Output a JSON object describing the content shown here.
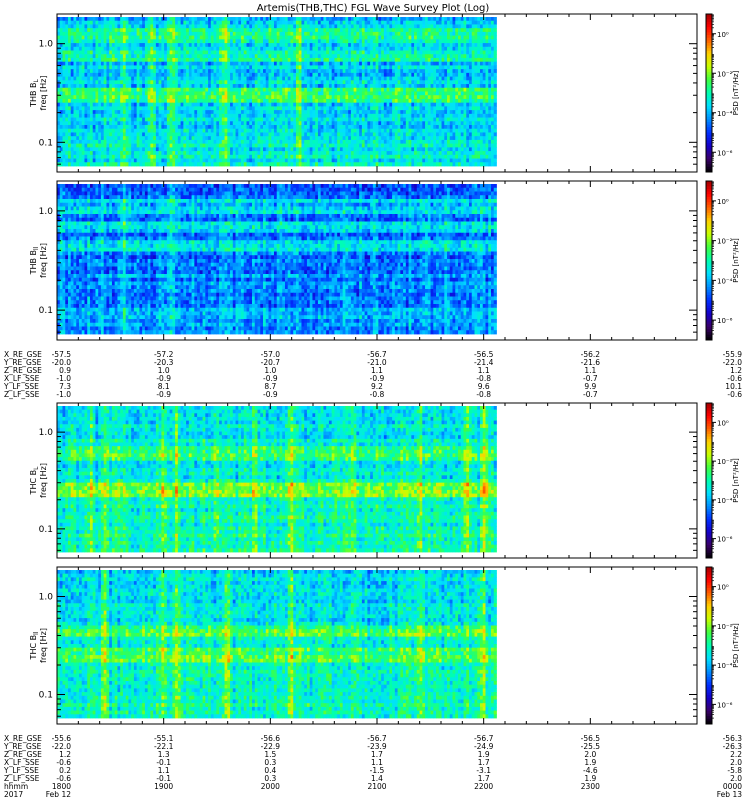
{
  "title": "Artemis(THB,THC) FGL Wave Survey Plot (Log)",
  "colors": {
    "colormap": [
      "#000000",
      "#3a006a",
      "#1400c8",
      "#0030ff",
      "#0090ff",
      "#00e0ff",
      "#00ffb0",
      "#40ff40",
      "#c8ff00",
      "#ffd000",
      "#ff6000",
      "#ff0000",
      "#a00000"
    ]
  },
  "chart_data": [
    {
      "type": "heatmap",
      "panel": "THB B_L",
      "ylabel_parts": [
        "THB B",
        "L"
      ],
      "yunit": "freq [Hz]",
      "yscale": "log",
      "ylim": [
        0.05,
        2.0
      ],
      "yticks": [
        {
          "v": 1.0,
          "label": "1.0"
        },
        {
          "v": 0.1,
          "label": "0.1"
        }
      ],
      "xlim": [
        1800,
        2400
      ],
      "data_extent_x": [
        1800,
        2212
      ],
      "colorbar_label": "PSD [nT²/Hz]",
      "colorbar_range_log": [
        -7,
        1
      ],
      "colorbar_ticks": [
        {
          "exp": 0,
          "label": "10⁰"
        },
        {
          "exp": -2,
          "label": "10⁻²"
        },
        {
          "exp": -4,
          "label": "10⁻⁴"
        },
        {
          "exp": -6,
          "label": "10⁻⁶"
        }
      ],
      "base_level": -3.7,
      "hot_freqs": [
        0.3,
        0.75,
        1.2
      ],
      "hot_times": [
        1863,
        1888,
        1908,
        1957,
        2027
      ]
    },
    {
      "type": "heatmap",
      "panel": "THB B_ll",
      "ylabel_parts": [
        "THB B",
        "ll"
      ],
      "yunit": "freq [Hz]",
      "yscale": "log",
      "ylim": [
        0.05,
        2.0
      ],
      "yticks": [
        {
          "v": 1.0,
          "label": "1.0"
        },
        {
          "v": 0.1,
          "label": "0.1"
        }
      ],
      "xlim": [
        1800,
        2400
      ],
      "data_extent_x": [
        1800,
        2212
      ],
      "colorbar_label": "PSD [nT²/Hz]",
      "colorbar_range_log": [
        -7,
        1
      ],
      "colorbar_ticks": [
        {
          "exp": 0,
          "label": "10⁰"
        },
        {
          "exp": -2,
          "label": "10⁻²"
        },
        {
          "exp": -4,
          "label": "10⁻⁴"
        },
        {
          "exp": -6,
          "label": "10⁻⁶"
        }
      ],
      "base_level": -4.4,
      "hot_freqs": [
        0.45,
        0.7,
        1.1
      ],
      "hot_times": [
        1863,
        1908
      ]
    },
    {
      "type": "heatmap",
      "panel": "THC B_L",
      "ylabel_parts": [
        "THC B",
        "L"
      ],
      "yunit": "freq [Hz]",
      "yscale": "log",
      "ylim": [
        0.05,
        2.0
      ],
      "yticks": [
        {
          "v": 1.0,
          "label": "1.0"
        },
        {
          "v": 0.1,
          "label": "0.1"
        }
      ],
      "xlim": [
        1800,
        2400
      ],
      "data_extent_x": [
        1800,
        2212
      ],
      "colorbar_label": "PSD [nT²/Hz]",
      "colorbar_range_log": [
        -7,
        1
      ],
      "colorbar_ticks": [
        {
          "exp": 0,
          "label": "10⁰"
        },
        {
          "exp": -2,
          "label": "10⁻²"
        },
        {
          "exp": -4,
          "label": "10⁻⁴"
        },
        {
          "exp": -6,
          "label": "10⁻⁶"
        }
      ],
      "base_level": -3.3,
      "hot_freqs": [
        0.25,
        0.6
      ],
      "hot_times": [
        1832,
        1845,
        1900,
        1912,
        1950,
        1985,
        2020,
        2078,
        2140,
        2185,
        2200
      ]
    },
    {
      "type": "heatmap",
      "panel": "THC B_ll",
      "ylabel_parts": [
        "THC B",
        "ll"
      ],
      "yunit": "freq [Hz]",
      "yscale": "log",
      "ylim": [
        0.05,
        2.0
      ],
      "yticks": [
        {
          "v": 1.0,
          "label": "1.0"
        },
        {
          "v": 0.1,
          "label": "0.1"
        }
      ],
      "xlim": [
        1800,
        2400
      ],
      "data_extent_x": [
        1800,
        2212
      ],
      "colorbar_label": "PSD [nT²/Hz]",
      "colorbar_range_log": [
        -7,
        1
      ],
      "colorbar_ticks": [
        {
          "exp": 0,
          "label": "10⁰"
        },
        {
          "exp": -2,
          "label": "10⁻²"
        },
        {
          "exp": -4,
          "label": "10⁻⁴"
        },
        {
          "exp": -6,
          "label": "10⁻⁶"
        }
      ],
      "base_level": -3.4,
      "hot_freqs": [
        0.25,
        0.45
      ],
      "hot_times": [
        1845,
        1900,
        1912,
        1960,
        2020,
        2140,
        2200
      ]
    }
  ],
  "ephemeris_thb": {
    "tick_times": [
      1800,
      1900,
      2000,
      2100,
      2200,
      2300,
      2400
    ],
    "rows": [
      {
        "label": "X_RE_GSE",
        "values": [
          "-57.5",
          "-57.2",
          "-57.0",
          "-56.7",
          "-56.5",
          "-56.2",
          "-55.9"
        ]
      },
      {
        "label": "Y_RE_GSE",
        "values": [
          "-20.0",
          "-20.3",
          "-20.7",
          "-21.0",
          "-21.4",
          "-21.6",
          "-22.0"
        ]
      },
      {
        "label": "Z_RE_GSE",
        "values": [
          "0.9",
          "1.0",
          "1.0",
          "1.1",
          "1.1",
          "1.1",
          "1.2"
        ]
      },
      {
        "label": "X_LF_SSE",
        "values": [
          "-1.0",
          "-0.9",
          "-0.9",
          "-0.9",
          "-0.8",
          "-0.7",
          "-0.6"
        ]
      },
      {
        "label": "Y_LF_SSE",
        "values": [
          "7.3",
          "8.1",
          "8.7",
          "9.2",
          "9.6",
          "9.9",
          "10.1"
        ]
      },
      {
        "label": "Z_LF_SSE",
        "values": [
          "-1.0",
          "-0.9",
          "-0.9",
          "-0.8",
          "-0.8",
          "-0.7",
          "-0.6"
        ]
      }
    ]
  },
  "ephemeris_thc": {
    "tick_times": [
      1800,
      1900,
      2000,
      2100,
      2200,
      2300,
      2400
    ],
    "rows": [
      {
        "label": "X_RE_GSE",
        "values": [
          "-55.6",
          "-55.1",
          "-56.6",
          "-56.7",
          "-56.7",
          "-56.5",
          "-56.3"
        ]
      },
      {
        "label": "Y_RE_GSE",
        "values": [
          "-22.0",
          "-22.1",
          "-22.9",
          "-23.9",
          "-24.9",
          "-25.5",
          "-26.3"
        ]
      },
      {
        "label": "Z_RE_GSE",
        "values": [
          "1.2",
          "1.3",
          "1.5",
          "1.7",
          "1.9",
          "2.0",
          "2.2"
        ]
      },
      {
        "label": "X_LF_SSE",
        "values": [
          "-0.6",
          "-0.1",
          "0.3",
          "1.1",
          "1.7",
          "1.9",
          "2.0"
        ]
      },
      {
        "label": "Y_LF_SSE",
        "values": [
          "0.2",
          "1.1",
          "0.4",
          "-1.5",
          "-3.1",
          "-4.6",
          "-5.8"
        ]
      },
      {
        "label": "Z_LF_SSE",
        "values": [
          "-0.6",
          "-0.1",
          "0.3",
          "1.4",
          "1.7",
          "1.9",
          "2.0"
        ]
      },
      {
        "label": "hhmm",
        "values": [
          "1800",
          "1900",
          "2000",
          "2100",
          "2200",
          "2300",
          "0000"
        ]
      },
      {
        "label": "2017",
        "values": [
          "Feb 12",
          "",
          "",
          "",
          "",
          "",
          "Feb 13"
        ]
      }
    ]
  }
}
